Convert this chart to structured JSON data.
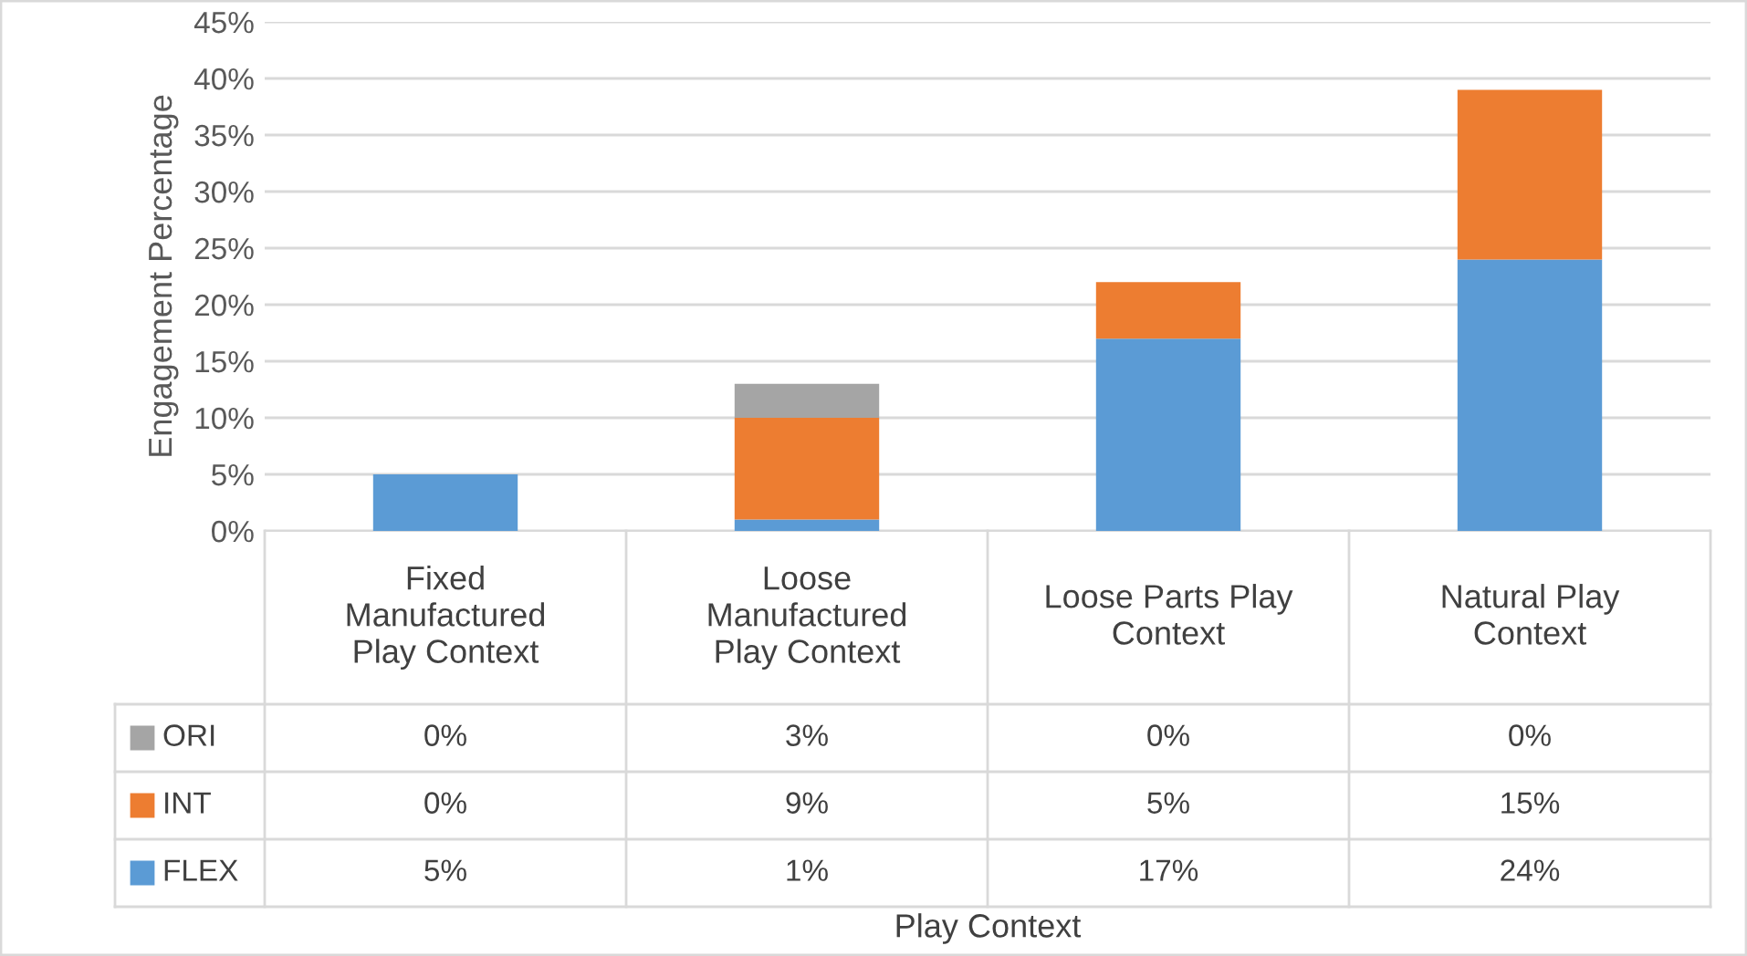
{
  "chart_data": {
    "type": "bar",
    "stacked": true,
    "annotations": [
      "Play Context"
    ],
    "ylabel": "Engagement Percentage",
    "categories": [
      "Fixed Manufactured Play Context",
      "Loose Manufactured Play Context",
      "Loose Parts Play Context",
      "Natural Play Context"
    ],
    "series": [
      {
        "name": "FLEX",
        "color": "#5b9bd5",
        "values": [
          5,
          1,
          17,
          24
        ],
        "value_labels": [
          "5%",
          "1%",
          "17%",
          "24%"
        ]
      },
      {
        "name": "INT",
        "color": "#ed7d31",
        "values": [
          0,
          9,
          5,
          15
        ],
        "value_labels": [
          "0%",
          "9%",
          "5%",
          "15%"
        ]
      },
      {
        "name": "ORI",
        "color": "#a5a5a5",
        "values": [
          0,
          3,
          0,
          0
        ],
        "value_labels": [
          "0%",
          "3%",
          "0%",
          "0%"
        ]
      }
    ],
    "ylim": [
      0,
      45
    ],
    "yticks": [
      {
        "value": 0,
        "label": "0%"
      },
      {
        "value": 5,
        "label": "5%"
      },
      {
        "value": 10,
        "label": "10%"
      },
      {
        "value": 15,
        "label": "15%"
      },
      {
        "value": 20,
        "label": "20%"
      },
      {
        "value": 25,
        "label": "25%"
      },
      {
        "value": 30,
        "label": "30%"
      },
      {
        "value": 35,
        "label": "35%"
      },
      {
        "value": 40,
        "label": "40%"
      },
      {
        "value": 45,
        "label": "45%"
      }
    ],
    "grid": "y",
    "legend": "bottom"
  }
}
